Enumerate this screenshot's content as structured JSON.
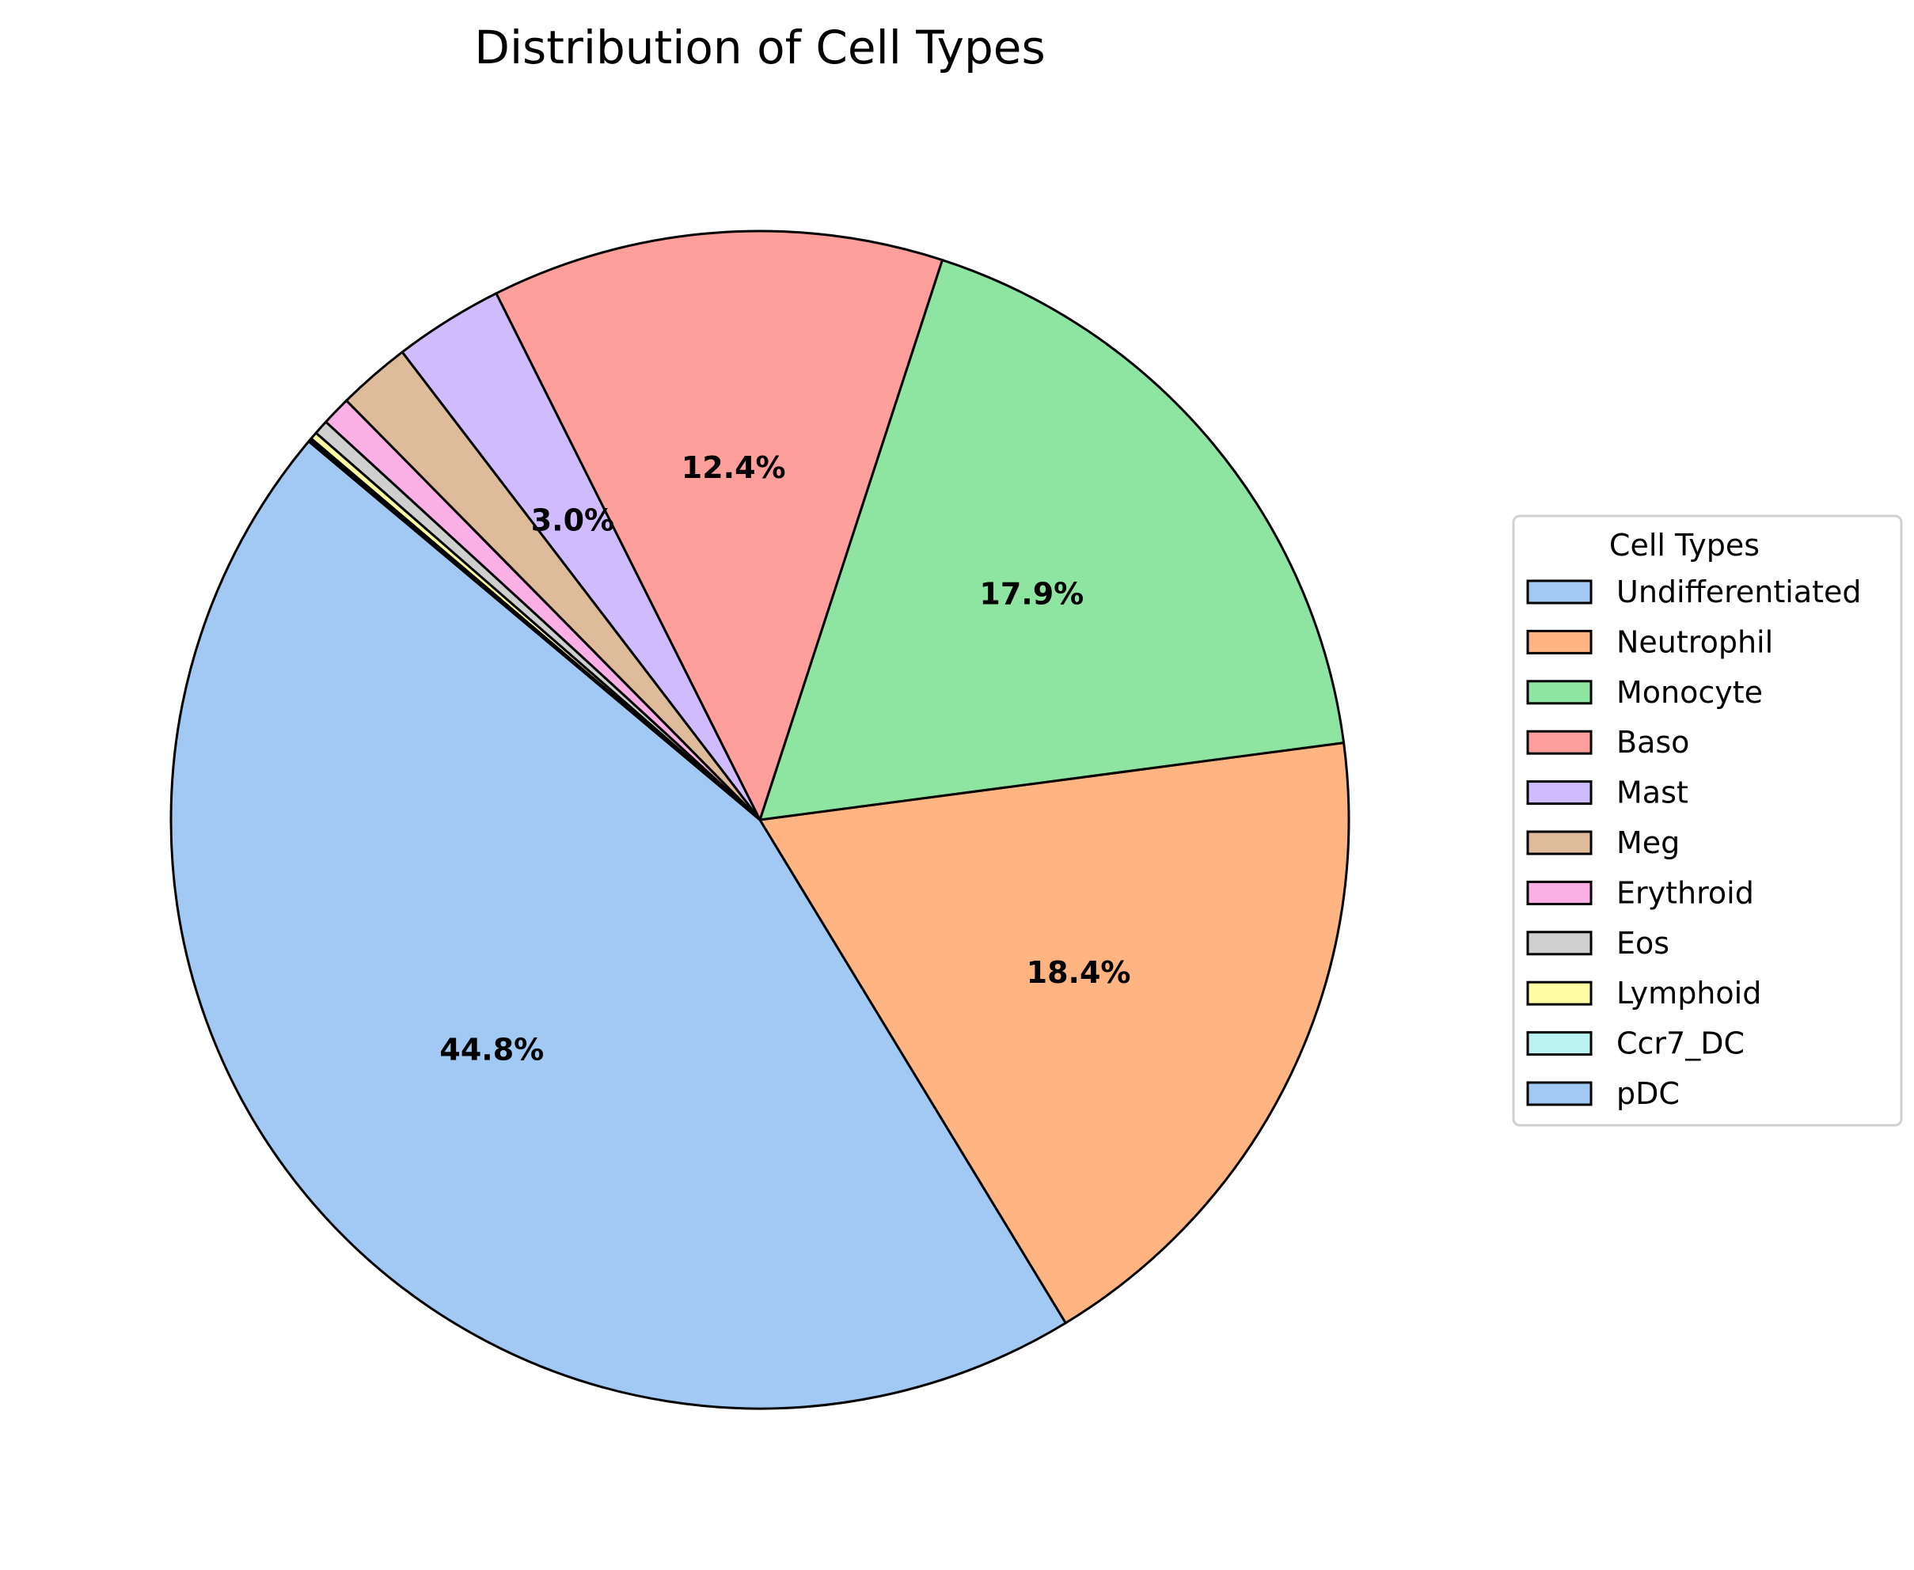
{
  "chart_data": {
    "type": "pie",
    "title": "Distribution of Cell Types",
    "legend_title": "Cell Types",
    "legend_position": "right",
    "start_angle_deg": 140,
    "direction": "counterclockwise",
    "categories": [
      "Undifferentiated",
      "Neutrophil",
      "Monocyte",
      "Baso",
      "Mast",
      "Meg",
      "Erythroid",
      "Eos",
      "Lymphoid",
      "Ccr7_DC",
      "pDC"
    ],
    "values": [
      44.8,
      18.4,
      17.9,
      12.4,
      3.0,
      2.0,
      0.8,
      0.4,
      0.2,
      0.05,
      0.05
    ],
    "value_labels": [
      "44.8%",
      "18.4%",
      "17.9%",
      "12.4%",
      "3.0%",
      "",
      "",
      "",
      "",
      "",
      ""
    ],
    "colors": [
      "#a1c9f4",
      "#ffb482",
      "#8de5a1",
      "#ff9f9b",
      "#d0bbff",
      "#debb9b",
      "#fab0e4",
      "#cfcfcf",
      "#fffea3",
      "#b9f2f0",
      "#a1c9f4"
    ],
    "edge_color": "#000000"
  }
}
